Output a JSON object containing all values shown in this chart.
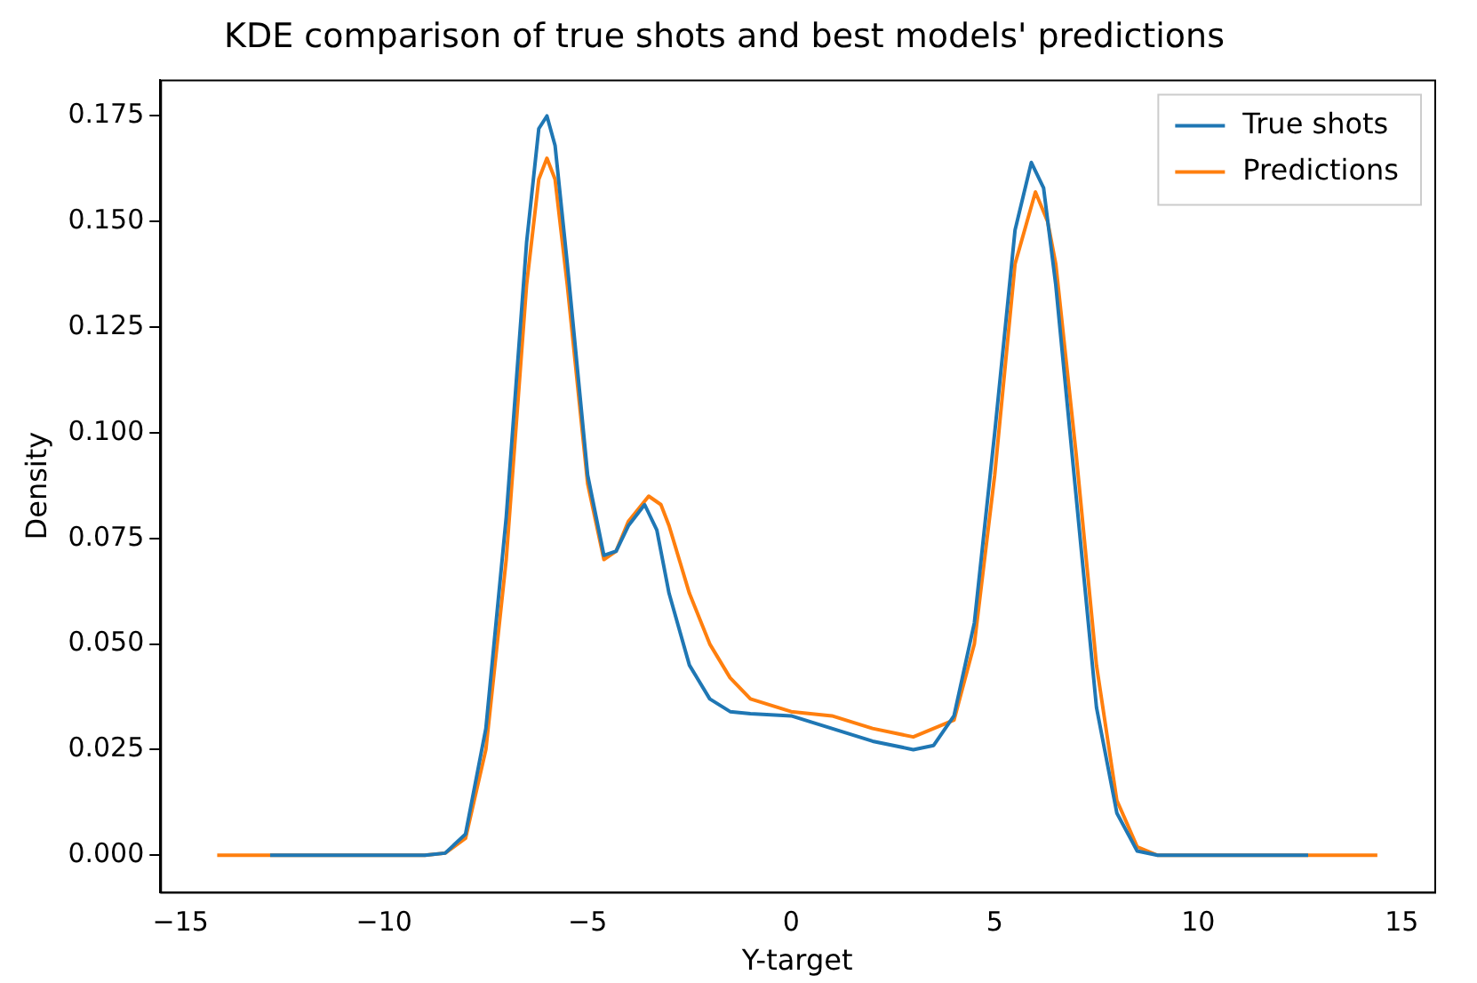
{
  "chart_data": {
    "type": "line",
    "title": "KDE comparison of true shots and best models' predictions",
    "xlabel": "Y-target",
    "ylabel": "Density",
    "xlim": [
      -15.5,
      15.8
    ],
    "ylim": [
      -0.0087,
      0.1836
    ],
    "xticks": [
      {
        "value": -15,
        "label": "−15"
      },
      {
        "value": -10,
        "label": "−10"
      },
      {
        "value": -5,
        "label": "−5"
      },
      0,
      5,
      10,
      15
    ],
    "yticks": [
      {
        "value": 0,
        "label": "0.000"
      },
      0.025,
      {
        "value": 0.05,
        "label": "0.050"
      },
      0.075,
      {
        "value": 0.1,
        "label": "0.100"
      },
      0.125,
      {
        "value": 0.15,
        "label": "0.150"
      },
      0.175
    ],
    "grid": false,
    "legend": "top right",
    "marker": "none",
    "line_style": "solid",
    "series": [
      {
        "name": "True shots",
        "color": "#1f77b4",
        "x": [
          -12.8,
          -9,
          -8.5,
          -8,
          -7.5,
          -7,
          -6.5,
          -6.2,
          -6.0,
          -5.8,
          -5.5,
          -5,
          -4.6,
          -4.3,
          -4,
          -3.6,
          -3.3,
          -3,
          -2.5,
          -2,
          -1.5,
          -1,
          0,
          1,
          2,
          3,
          3.5,
          4,
          4.5,
          5,
          5.5,
          5.9,
          6.2,
          6.5,
          7,
          7.5,
          8,
          8.5,
          9,
          12.7
        ],
        "values": [
          0,
          0,
          0.0005,
          0.005,
          0.03,
          0.08,
          0.145,
          0.172,
          0.175,
          0.168,
          0.14,
          0.09,
          0.071,
          0.072,
          0.078,
          0.083,
          0.077,
          0.062,
          0.045,
          0.037,
          0.034,
          0.0335,
          0.033,
          0.03,
          0.027,
          0.025,
          0.026,
          0.033,
          0.055,
          0.1,
          0.148,
          0.164,
          0.158,
          0.135,
          0.085,
          0.035,
          0.01,
          0.001,
          0,
          0
        ]
      },
      {
        "name": "Predictions",
        "color": "#ff7f0e",
        "x": [
          -14.1,
          -9,
          -8.5,
          -8,
          -7.5,
          -7,
          -6.5,
          -6.2,
          -6.0,
          -5.8,
          -5.5,
          -5,
          -4.6,
          -4.3,
          -4,
          -3.5,
          -3.2,
          -3,
          -2.5,
          -2,
          -1.5,
          -1,
          0,
          1,
          2,
          3,
          4,
          4.5,
          5,
          5.5,
          6.0,
          6.3,
          6.5,
          7,
          7.5,
          8,
          8.5,
          9,
          14.4
        ],
        "values": [
          0,
          0,
          0.0005,
          0.004,
          0.025,
          0.07,
          0.135,
          0.16,
          0.165,
          0.16,
          0.135,
          0.088,
          0.07,
          0.072,
          0.079,
          0.085,
          0.083,
          0.078,
          0.062,
          0.05,
          0.042,
          0.037,
          0.034,
          0.033,
          0.03,
          0.028,
          0.032,
          0.05,
          0.09,
          0.14,
          0.157,
          0.15,
          0.14,
          0.095,
          0.045,
          0.013,
          0.002,
          0,
          0
        ]
      }
    ]
  }
}
